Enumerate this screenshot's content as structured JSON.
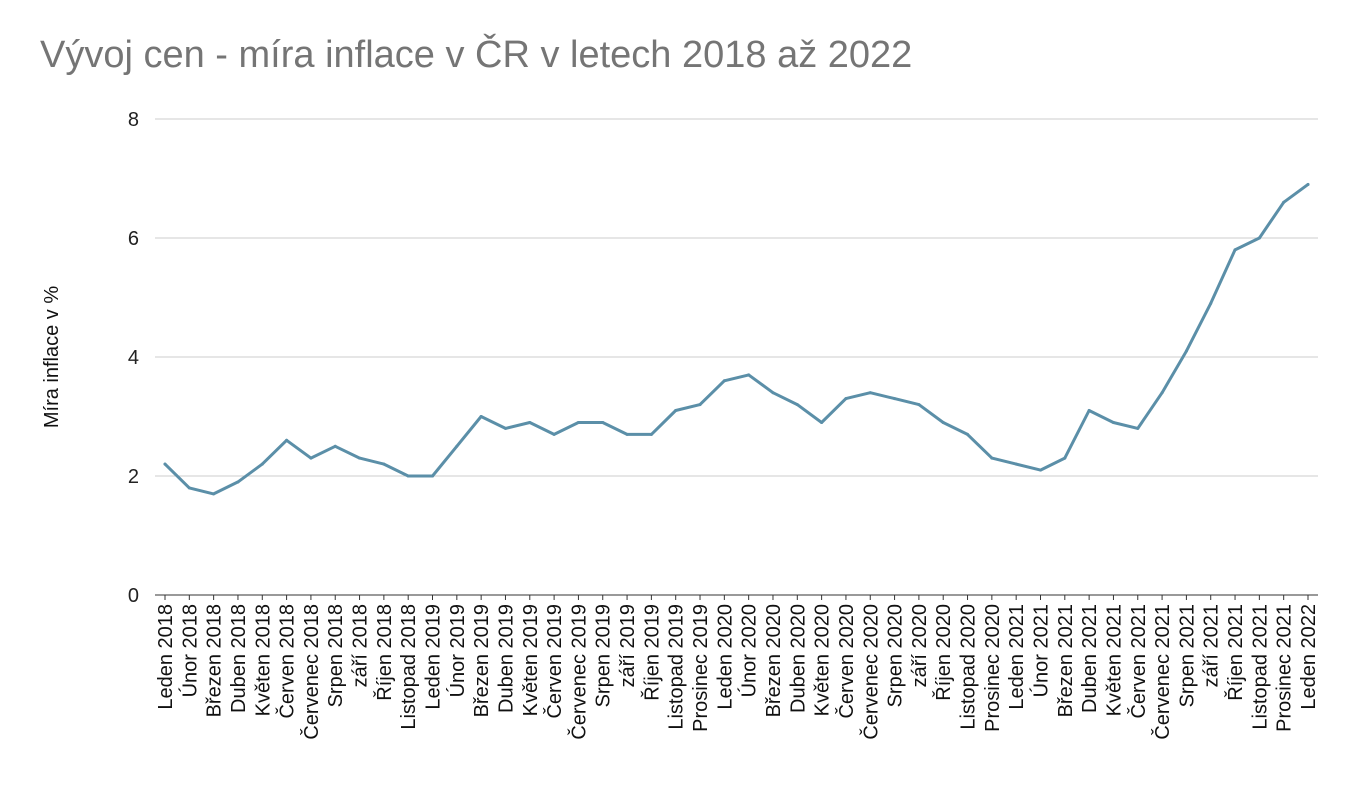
{
  "chart_data": {
    "type": "line",
    "title": "Vývoj cen - míra inflace v ČR v letech 2018 až 2022",
    "xlabel": "",
    "ylabel": "Míra inflace v %",
    "ylim": [
      0,
      8
    ],
    "yticks": [
      "0",
      "2",
      "4",
      "6",
      "8"
    ],
    "grid": true,
    "legend": "none",
    "color": "#5b8fa8",
    "categories": [
      "Leden 2018",
      "Únor 2018",
      "Březen 2018",
      "Duben 2018",
      "Květen 2018",
      "Červen 2018",
      "Červenec 2018",
      "Srpen 2018",
      "září 2018",
      "Říjen 2018",
      "Listopad 2018",
      "Leden 2019",
      "Únor 2019",
      "Březen 2019",
      "Duben 2019",
      "Květen 2019",
      "Červen 2019",
      "Červenec 2019",
      "Srpen 2019",
      "září 2019",
      "Říjen 2019",
      "Listopad 2019",
      "Prosinec 2019",
      "Leden 2020",
      "Únor 2020",
      "Březen 2020",
      "Duben 2020",
      "Květen 2020",
      "Červen 2020",
      "Červenec 2020",
      "Srpen 2020",
      "září 2020",
      "Říjen 2020",
      "Listopad 2020",
      "Prosinec 2020",
      "Leden 2021",
      "Únor 2021",
      "Březen 2021",
      "Duben 2021",
      "Květen 2021",
      "Červen 2021",
      "Červenec 2021",
      "Srpen 2021",
      "září 2021",
      "Říjen 2021",
      "Listopad 2021",
      "Prosinec 2021",
      "Leden 2022"
    ],
    "series": [
      {
        "values": [
          2.2,
          1.8,
          1.7,
          1.9,
          2.2,
          2.6,
          2.3,
          2.5,
          2.3,
          2.2,
          2.0,
          2.0,
          2.5,
          3.0,
          2.8,
          2.9,
          2.7,
          2.9,
          2.9,
          2.7,
          2.7,
          3.1,
          3.2,
          3.6,
          3.7,
          3.4,
          3.2,
          2.9,
          3.3,
          3.4,
          3.3,
          3.2,
          2.9,
          2.7,
          2.3,
          2.2,
          2.1,
          2.3,
          3.1,
          2.9,
          2.8,
          3.4,
          4.1,
          4.9,
          5.8,
          6.0,
          6.6,
          6.9
        ]
      }
    ]
  }
}
